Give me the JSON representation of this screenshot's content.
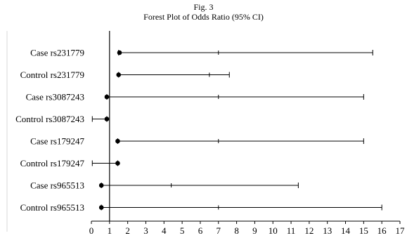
{
  "figure": {
    "label": "Fig. 3",
    "title": "Forest Plot of Odds Ratio (95% CI)"
  },
  "chart_data": {
    "type": "scatter",
    "title": "Forest Plot of Odds Ratio (95% CI)",
    "xlabel": "",
    "ylabel": "",
    "xlim": [
      0,
      17
    ],
    "xticks": [
      0,
      1,
      2,
      3,
      4,
      5,
      6,
      7,
      8,
      9,
      10,
      11,
      12,
      13,
      14,
      15,
      16,
      17
    ],
    "reference_line": 1,
    "grid": false,
    "rows": [
      {
        "label": "Case rs231779",
        "or": 1.55,
        "lower": 1.5,
        "upper": 15.5,
        "mid_tick": 7.0
      },
      {
        "label": "Control rs231779",
        "or": 1.5,
        "lower": 1.5,
        "upper": 7.6,
        "mid_tick": 6.5
      },
      {
        "label": "Case rs3087243",
        "or": 0.85,
        "lower": 0.85,
        "upper": 15.0,
        "mid_tick": 7.0
      },
      {
        "label": "Control rs3087243",
        "or": 0.85,
        "lower": 0.05,
        "upper": 0.85,
        "mid_tick": null
      },
      {
        "label": "Case rs179247",
        "or": 1.45,
        "lower": 1.45,
        "upper": 15.0,
        "mid_tick": 7.0
      },
      {
        "label": "Control rs179247",
        "or": 1.45,
        "lower": 0.05,
        "upper": 1.45,
        "mid_tick": null
      },
      {
        "label": "Case rs965513",
        "or": 0.55,
        "lower": 0.55,
        "upper": 11.4,
        "mid_tick": 4.4
      },
      {
        "label": "Control rs965513",
        "or": 0.55,
        "lower": 0.55,
        "upper": 16.0,
        "mid_tick": 7.0
      }
    ]
  }
}
